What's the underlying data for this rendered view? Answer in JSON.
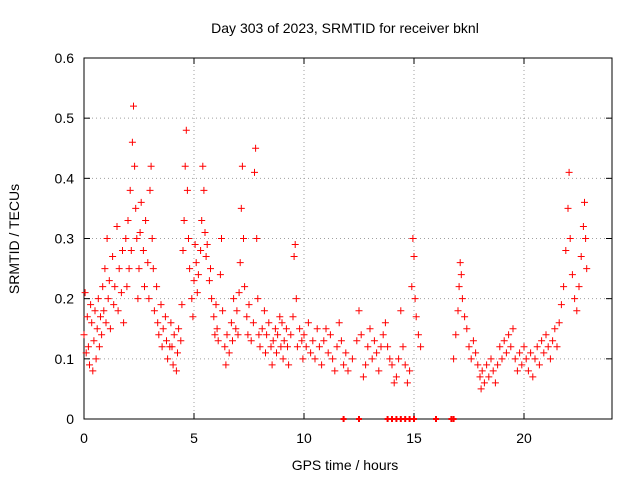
{
  "chart_data": {
    "type": "scatter",
    "title": "Day 303 of 2023, SRMTID for receiver bknl",
    "xlabel": "GPS time / hours",
    "ylabel": "SRMTID / TECUs",
    "xlim": [
      0,
      24
    ],
    "ylim": [
      0,
      0.6
    ],
    "xticks": [
      0,
      5,
      10,
      15,
      20
    ],
    "yticks": [
      0,
      0.1,
      0.2,
      0.3,
      0.4,
      0.5,
      0.6
    ],
    "grid": true,
    "marker": "+",
    "series": [
      {
        "name": "SRMTID",
        "color": "#ff0000",
        "points": [
          [
            0.0,
            0.14
          ],
          [
            0.05,
            0.21
          ],
          [
            0.1,
            0.11
          ],
          [
            0.15,
            0.17
          ],
          [
            0.2,
            0.12
          ],
          [
            0.25,
            0.09
          ],
          [
            0.3,
            0.19
          ],
          [
            0.35,
            0.16
          ],
          [
            0.4,
            0.08
          ],
          [
            0.45,
            0.13
          ],
          [
            0.5,
            0.18
          ],
          [
            0.55,
            0.1
          ],
          [
            0.6,
            0.15
          ],
          [
            0.65,
            0.2
          ],
          [
            0.7,
            0.12
          ],
          [
            0.75,
            0.17
          ],
          [
            0.8,
            0.14
          ],
          [
            0.85,
            0.22
          ],
          [
            0.9,
            0.18
          ],
          [
            0.95,
            0.25
          ],
          [
            1.0,
            0.16
          ],
          [
            1.05,
            0.3
          ],
          [
            1.1,
            0.2
          ],
          [
            1.15,
            0.23
          ],
          [
            1.2,
            0.15
          ],
          [
            1.3,
            0.27
          ],
          [
            1.35,
            0.19
          ],
          [
            1.4,
            0.22
          ],
          [
            1.5,
            0.32
          ],
          [
            1.55,
            0.18
          ],
          [
            1.6,
            0.25
          ],
          [
            1.7,
            0.21
          ],
          [
            1.75,
            0.28
          ],
          [
            1.8,
            0.16
          ],
          [
            1.9,
            0.3
          ],
          [
            1.95,
            0.22
          ],
          [
            2.0,
            0.33
          ],
          [
            2.05,
            0.25
          ],
          [
            2.1,
            0.38
          ],
          [
            2.15,
            0.28
          ],
          [
            2.2,
            0.46
          ],
          [
            2.25,
            0.52
          ],
          [
            2.3,
            0.42
          ],
          [
            2.35,
            0.35
          ],
          [
            2.4,
            0.3
          ],
          [
            2.45,
            0.2
          ],
          [
            2.5,
            0.25
          ],
          [
            2.55,
            0.31
          ],
          [
            2.6,
            0.36
          ],
          [
            2.7,
            0.28
          ],
          [
            2.75,
            0.22
          ],
          [
            2.8,
            0.33
          ],
          [
            2.9,
            0.26
          ],
          [
            2.95,
            0.2
          ],
          [
            3.0,
            0.38
          ],
          [
            3.05,
            0.42
          ],
          [
            3.1,
            0.3
          ],
          [
            3.15,
            0.25
          ],
          [
            3.2,
            0.18
          ],
          [
            3.3,
            0.22
          ],
          [
            3.35,
            0.16
          ],
          [
            3.4,
            0.14
          ],
          [
            3.5,
            0.19
          ],
          [
            3.55,
            0.12
          ],
          [
            3.6,
            0.15
          ],
          [
            3.7,
            0.17
          ],
          [
            3.75,
            0.13
          ],
          [
            3.8,
            0.1
          ],
          [
            3.9,
            0.12
          ],
          [
            3.95,
            0.16
          ],
          [
            4.0,
            0.12
          ],
          [
            4.05,
            0.09
          ],
          [
            4.1,
            0.14
          ],
          [
            4.2,
            0.08
          ],
          [
            4.25,
            0.11
          ],
          [
            4.3,
            0.15
          ],
          [
            4.4,
            0.13
          ],
          [
            4.45,
            0.19
          ],
          [
            4.5,
            0.28
          ],
          [
            4.55,
            0.33
          ],
          [
            4.6,
            0.42
          ],
          [
            4.65,
            0.48
          ],
          [
            4.7,
            0.38
          ],
          [
            4.75,
            0.3
          ],
          [
            4.8,
            0.25
          ],
          [
            4.9,
            0.2
          ],
          [
            4.95,
            0.17
          ],
          [
            5.0,
            0.23
          ],
          [
            5.05,
            0.29
          ],
          [
            5.1,
            0.26
          ],
          [
            5.15,
            0.21
          ],
          [
            5.2,
            0.24
          ],
          [
            5.3,
            0.28
          ],
          [
            5.35,
            0.33
          ],
          [
            5.4,
            0.42
          ],
          [
            5.45,
            0.38
          ],
          [
            5.5,
            0.31
          ],
          [
            5.55,
            0.27
          ],
          [
            5.6,
            0.29
          ],
          [
            5.7,
            0.23
          ],
          [
            5.75,
            0.25
          ],
          [
            5.8,
            0.2
          ],
          [
            5.9,
            0.17
          ],
          [
            5.95,
            0.14
          ],
          [
            6.0,
            0.19
          ],
          [
            6.05,
            0.15
          ],
          [
            6.1,
            0.13
          ],
          [
            6.2,
            0.24
          ],
          [
            6.25,
            0.3
          ],
          [
            6.3,
            0.18
          ],
          [
            6.4,
            0.12
          ],
          [
            6.45,
            0.09
          ],
          [
            6.5,
            0.14
          ],
          [
            6.6,
            0.11
          ],
          [
            6.7,
            0.16
          ],
          [
            6.75,
            0.13
          ],
          [
            6.8,
            0.2
          ],
          [
            6.9,
            0.15
          ],
          [
            6.95,
            0.18
          ],
          [
            7.0,
            0.14
          ],
          [
            7.05,
            0.21
          ],
          [
            7.1,
            0.26
          ],
          [
            7.15,
            0.35
          ],
          [
            7.2,
            0.42
          ],
          [
            7.25,
            0.3
          ],
          [
            7.3,
            0.22
          ],
          [
            7.4,
            0.17
          ],
          [
            7.45,
            0.14
          ],
          [
            7.5,
            0.19
          ],
          [
            7.6,
            0.13
          ],
          [
            7.7,
            0.16
          ],
          [
            7.75,
            0.41
          ],
          [
            7.8,
            0.45
          ],
          [
            7.85,
            0.3
          ],
          [
            7.9,
            0.2
          ],
          [
            7.95,
            0.14
          ],
          [
            8.0,
            0.12
          ],
          [
            8.1,
            0.15
          ],
          [
            8.2,
            0.18
          ],
          [
            8.25,
            0.11
          ],
          [
            8.3,
            0.14
          ],
          [
            8.4,
            0.16
          ],
          [
            8.5,
            0.12
          ],
          [
            8.55,
            0.09
          ],
          [
            8.6,
            0.13
          ],
          [
            8.7,
            0.15
          ],
          [
            8.75,
            0.11
          ],
          [
            8.8,
            0.14
          ],
          [
            8.9,
            0.17
          ],
          [
            8.95,
            0.12
          ],
          [
            9.0,
            0.16
          ],
          [
            9.05,
            0.1
          ],
          [
            9.1,
            0.13
          ],
          [
            9.2,
            0.15
          ],
          [
            9.25,
            0.12
          ],
          [
            9.3,
            0.09
          ],
          [
            9.4,
            0.14
          ],
          [
            9.5,
            0.17
          ],
          [
            9.55,
            0.27
          ],
          [
            9.6,
            0.29
          ],
          [
            9.65,
            0.2
          ],
          [
            9.7,
            0.12
          ],
          [
            9.8,
            0.15
          ],
          [
            9.9,
            0.13
          ],
          [
            9.95,
            0.1
          ],
          [
            10.0,
            0.14
          ],
          [
            10.1,
            0.12
          ],
          [
            10.2,
            0.16
          ],
          [
            10.3,
            0.11
          ],
          [
            10.4,
            0.13
          ],
          [
            10.5,
            0.1
          ],
          [
            10.6,
            0.15
          ],
          [
            10.7,
            0.12
          ],
          [
            10.8,
            0.09
          ],
          [
            10.9,
            0.13
          ],
          [
            11.0,
            0.15
          ],
          [
            11.1,
            0.11
          ],
          [
            11.2,
            0.14
          ],
          [
            11.3,
            0.1
          ],
          [
            11.4,
            0.08
          ],
          [
            11.5,
            0.12
          ],
          [
            11.6,
            0.16
          ],
          [
            11.7,
            0.13
          ],
          [
            11.8,
            0.09
          ],
          [
            11.9,
            0.11
          ],
          [
            12.0,
            0.08
          ],
          [
            12.2,
            0.1
          ],
          [
            12.4,
            0.13
          ],
          [
            12.5,
            0.18
          ],
          [
            12.6,
            0.14
          ],
          [
            12.7,
            0.07
          ],
          [
            12.8,
            0.09
          ],
          [
            12.9,
            0.12
          ],
          [
            13.0,
            0.15
          ],
          [
            13.1,
            0.1
          ],
          [
            13.2,
            0.13
          ],
          [
            13.3,
            0.11
          ],
          [
            13.4,
            0.08
          ],
          [
            13.5,
            0.12
          ],
          [
            13.6,
            0.14
          ],
          [
            13.7,
            0.16
          ],
          [
            13.8,
            0.12
          ],
          [
            13.9,
            0.1
          ],
          [
            14.0,
            0.09
          ],
          [
            14.1,
            0.06
          ],
          [
            14.2,
            0.07
          ],
          [
            14.3,
            0.1
          ],
          [
            14.4,
            0.18
          ],
          [
            14.5,
            0.12
          ],
          [
            14.6,
            0.09
          ],
          [
            14.7,
            0.06
          ],
          [
            14.8,
            0.08
          ],
          [
            14.9,
            0.22
          ],
          [
            14.95,
            0.3
          ],
          [
            15.0,
            0.27
          ],
          [
            15.05,
            0.2
          ],
          [
            15.1,
            0.17
          ],
          [
            15.2,
            0.14
          ],
          [
            15.3,
            0.12
          ],
          [
            16.8,
            0.1
          ],
          [
            16.9,
            0.14
          ],
          [
            17.0,
            0.18
          ],
          [
            17.05,
            0.22
          ],
          [
            17.1,
            0.26
          ],
          [
            17.15,
            0.24
          ],
          [
            17.2,
            0.2
          ],
          [
            17.3,
            0.17
          ],
          [
            17.4,
            0.15
          ],
          [
            17.5,
            0.12
          ],
          [
            17.6,
            0.1
          ],
          [
            17.7,
            0.13
          ],
          [
            17.8,
            0.11
          ],
          [
            17.9,
            0.09
          ],
          [
            18.0,
            0.07
          ],
          [
            18.05,
            0.05
          ],
          [
            18.1,
            0.08
          ],
          [
            18.2,
            0.06
          ],
          [
            18.3,
            0.09
          ],
          [
            18.4,
            0.07
          ],
          [
            18.5,
            0.1
          ],
          [
            18.6,
            0.08
          ],
          [
            18.7,
            0.06
          ],
          [
            18.8,
            0.09
          ],
          [
            18.9,
            0.12
          ],
          [
            19.0,
            0.1
          ],
          [
            19.1,
            0.13
          ],
          [
            19.2,
            0.11
          ],
          [
            19.3,
            0.14
          ],
          [
            19.4,
            0.12
          ],
          [
            19.5,
            0.15
          ],
          [
            19.6,
            0.1
          ],
          [
            19.7,
            0.08
          ],
          [
            19.8,
            0.11
          ],
          [
            19.9,
            0.09
          ],
          [
            20.0,
            0.12
          ],
          [
            20.1,
            0.1
          ],
          [
            20.2,
            0.08
          ],
          [
            20.3,
            0.11
          ],
          [
            20.4,
            0.07
          ],
          [
            20.5,
            0.1
          ],
          [
            20.6,
            0.12
          ],
          [
            20.7,
            0.09
          ],
          [
            20.8,
            0.13
          ],
          [
            20.9,
            0.11
          ],
          [
            21.0,
            0.14
          ],
          [
            21.1,
            0.12
          ],
          [
            21.2,
            0.1
          ],
          [
            21.3,
            0.13
          ],
          [
            21.4,
            0.15
          ],
          [
            21.5,
            0.12
          ],
          [
            21.6,
            0.16
          ],
          [
            21.7,
            0.19
          ],
          [
            21.8,
            0.22
          ],
          [
            21.9,
            0.28
          ],
          [
            22.0,
            0.35
          ],
          [
            22.05,
            0.41
          ],
          [
            22.1,
            0.3
          ],
          [
            22.2,
            0.24
          ],
          [
            22.3,
            0.2
          ],
          [
            22.4,
            0.18
          ],
          [
            22.5,
            0.22
          ],
          [
            22.6,
            0.27
          ],
          [
            22.7,
            0.32
          ],
          [
            22.75,
            0.36
          ],
          [
            22.8,
            0.3
          ],
          [
            22.85,
            0.25
          ]
        ]
      }
    ],
    "baseline_markers": [
      11.8,
      12.5,
      13.8,
      14.0,
      14.2,
      14.4,
      14.6,
      14.8,
      15.0,
      16.0,
      16.7,
      16.8
    ]
  }
}
